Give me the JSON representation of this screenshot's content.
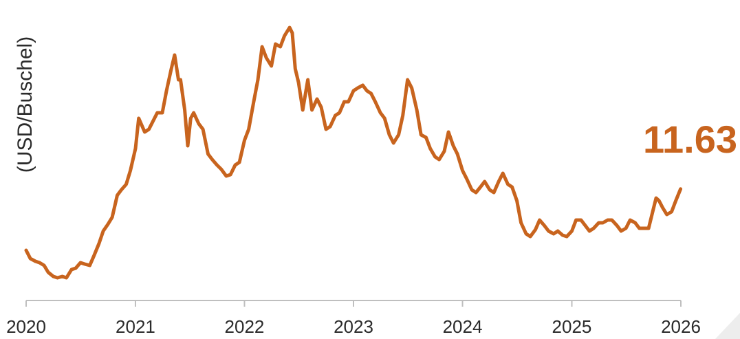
{
  "chart_data": {
    "type": "line",
    "ylabel": "(USD/Buschel)",
    "last_value_label": "11.63",
    "line_color": "#C8641E",
    "axis_color": "#BFBFBF",
    "grid": false,
    "x_ticks": [
      "2020",
      "2021",
      "2022",
      "2023",
      "2024",
      "2025",
      "2026"
    ],
    "series": [
      {
        "values": [
          [
            "2020-01-01",
            9.4
          ],
          [
            "2020-01-15",
            9.1
          ],
          [
            "2020-02-01",
            9.0
          ],
          [
            "2020-02-15",
            8.95
          ],
          [
            "2020-03-01",
            8.85
          ],
          [
            "2020-03-15",
            8.6
          ],
          [
            "2020-04-01",
            8.45
          ],
          [
            "2020-04-15",
            8.4
          ],
          [
            "2020-05-01",
            8.45
          ],
          [
            "2020-05-15",
            8.4
          ],
          [
            "2020-06-01",
            8.7
          ],
          [
            "2020-06-15",
            8.75
          ],
          [
            "2020-07-01",
            8.95
          ],
          [
            "2020-07-15",
            8.9
          ],
          [
            "2020-08-01",
            8.85
          ],
          [
            "2020-08-15",
            9.2
          ],
          [
            "2020-09-01",
            9.65
          ],
          [
            "2020-09-15",
            10.1
          ],
          [
            "2020-10-01",
            10.35
          ],
          [
            "2020-10-15",
            10.6
          ],
          [
            "2020-11-01",
            11.4
          ],
          [
            "2020-11-15",
            11.6
          ],
          [
            "2020-12-01",
            11.8
          ],
          [
            "2020-12-15",
            12.3
          ],
          [
            "2021-01-01",
            13.1
          ],
          [
            "2021-01-12",
            14.2
          ],
          [
            "2021-02-01",
            13.7
          ],
          [
            "2021-02-15",
            13.8
          ],
          [
            "2021-03-01",
            14.1
          ],
          [
            "2021-03-15",
            14.4
          ],
          [
            "2021-04-01",
            14.4
          ],
          [
            "2021-04-15",
            15.2
          ],
          [
            "2021-05-01",
            16.0
          ],
          [
            "2021-05-12",
            16.5
          ],
          [
            "2021-05-25",
            15.6
          ],
          [
            "2021-06-01",
            15.6
          ],
          [
            "2021-06-15",
            14.5
          ],
          [
            "2021-06-25",
            13.2
          ],
          [
            "2021-07-05",
            14.2
          ],
          [
            "2021-07-15",
            14.4
          ],
          [
            "2021-08-01",
            14.0
          ],
          [
            "2021-08-15",
            13.8
          ],
          [
            "2021-09-01",
            12.9
          ],
          [
            "2021-09-15",
            12.7
          ],
          [
            "2021-10-01",
            12.5
          ],
          [
            "2021-10-15",
            12.35
          ],
          [
            "2021-11-01",
            12.1
          ],
          [
            "2021-11-15",
            12.15
          ],
          [
            "2021-12-01",
            12.5
          ],
          [
            "2021-12-15",
            12.6
          ],
          [
            "2022-01-01",
            13.4
          ],
          [
            "2022-01-15",
            13.8
          ],
          [
            "2022-02-01",
            14.8
          ],
          [
            "2022-02-15",
            15.6
          ],
          [
            "2022-03-01",
            16.8
          ],
          [
            "2022-03-15",
            16.4
          ],
          [
            "2022-04-01",
            16.1
          ],
          [
            "2022-04-15",
            16.9
          ],
          [
            "2022-05-01",
            16.8
          ],
          [
            "2022-05-15",
            17.2
          ],
          [
            "2022-06-01",
            17.5
          ],
          [
            "2022-06-10",
            17.3
          ],
          [
            "2022-06-20",
            16.0
          ],
          [
            "2022-07-01",
            15.5
          ],
          [
            "2022-07-15",
            14.5
          ],
          [
            "2022-08-01",
            15.6
          ],
          [
            "2022-08-15",
            14.5
          ],
          [
            "2022-09-01",
            14.9
          ],
          [
            "2022-09-15",
            14.6
          ],
          [
            "2022-10-01",
            13.8
          ],
          [
            "2022-10-15",
            13.9
          ],
          [
            "2022-11-01",
            14.3
          ],
          [
            "2022-11-15",
            14.4
          ],
          [
            "2022-12-01",
            14.8
          ],
          [
            "2022-12-15",
            14.8
          ],
          [
            "2023-01-01",
            15.2
          ],
          [
            "2023-01-15",
            15.3
          ],
          [
            "2023-02-01",
            15.4
          ],
          [
            "2023-02-15",
            15.2
          ],
          [
            "2023-03-01",
            15.1
          ],
          [
            "2023-03-15",
            14.8
          ],
          [
            "2023-04-01",
            14.4
          ],
          [
            "2023-04-15",
            14.2
          ],
          [
            "2023-05-01",
            13.6
          ],
          [
            "2023-05-15",
            13.3
          ],
          [
            "2023-06-01",
            13.6
          ],
          [
            "2023-06-15",
            14.3
          ],
          [
            "2023-07-01",
            15.6
          ],
          [
            "2023-07-15",
            15.3
          ],
          [
            "2023-08-01",
            14.5
          ],
          [
            "2023-08-15",
            13.6
          ],
          [
            "2023-09-01",
            13.5
          ],
          [
            "2023-09-15",
            13.1
          ],
          [
            "2023-10-01",
            12.8
          ],
          [
            "2023-10-15",
            12.7
          ],
          [
            "2023-11-01",
            13.0
          ],
          [
            "2023-11-15",
            13.7
          ],
          [
            "2023-12-01",
            13.2
          ],
          [
            "2023-12-15",
            12.9
          ],
          [
            "2024-01-01",
            12.3
          ],
          [
            "2024-01-15",
            12.0
          ],
          [
            "2024-02-01",
            11.6
          ],
          [
            "2024-02-15",
            11.5
          ],
          [
            "2024-03-01",
            11.7
          ],
          [
            "2024-03-15",
            11.9
          ],
          [
            "2024-04-01",
            11.6
          ],
          [
            "2024-04-15",
            11.5
          ],
          [
            "2024-05-01",
            11.9
          ],
          [
            "2024-05-15",
            12.2
          ],
          [
            "2024-06-01",
            11.8
          ],
          [
            "2024-06-15",
            11.7
          ],
          [
            "2024-07-01",
            11.2
          ],
          [
            "2024-07-15",
            10.4
          ],
          [
            "2024-08-01",
            10.0
          ],
          [
            "2024-08-15",
            9.9
          ],
          [
            "2024-09-01",
            10.15
          ],
          [
            "2024-09-15",
            10.5
          ],
          [
            "2024-10-01",
            10.3
          ],
          [
            "2024-10-15",
            10.1
          ],
          [
            "2024-11-01",
            10.0
          ],
          [
            "2024-11-15",
            10.1
          ],
          [
            "2024-12-01",
            9.95
          ],
          [
            "2024-12-15",
            9.9
          ],
          [
            "2025-01-01",
            10.1
          ],
          [
            "2025-01-15",
            10.5
          ],
          [
            "2025-02-01",
            10.5
          ],
          [
            "2025-02-15",
            10.3
          ],
          [
            "2025-03-01",
            10.1
          ],
          [
            "2025-03-15",
            10.2
          ],
          [
            "2025-04-01",
            10.4
          ],
          [
            "2025-04-15",
            10.4
          ],
          [
            "2025-05-01",
            10.5
          ],
          [
            "2025-05-15",
            10.5
          ],
          [
            "2025-06-01",
            10.3
          ],
          [
            "2025-06-15",
            10.1
          ],
          [
            "2025-07-01",
            10.2
          ],
          [
            "2025-07-15",
            10.5
          ],
          [
            "2025-08-01",
            10.4
          ],
          [
            "2025-08-15",
            10.2
          ],
          [
            "2025-09-01",
            10.2
          ],
          [
            "2025-09-15",
            10.2
          ],
          [
            "2025-10-01",
            10.9
          ],
          [
            "2025-10-10",
            11.3
          ],
          [
            "2025-10-20",
            11.2
          ],
          [
            "2025-11-01",
            10.95
          ],
          [
            "2025-11-15",
            10.7
          ],
          [
            "2025-12-01",
            10.8
          ],
          [
            "2025-12-15",
            11.2
          ],
          [
            "2025-12-31",
            11.63
          ]
        ]
      }
    ],
    "ylim": [
      8.0,
      18.0
    ]
  }
}
